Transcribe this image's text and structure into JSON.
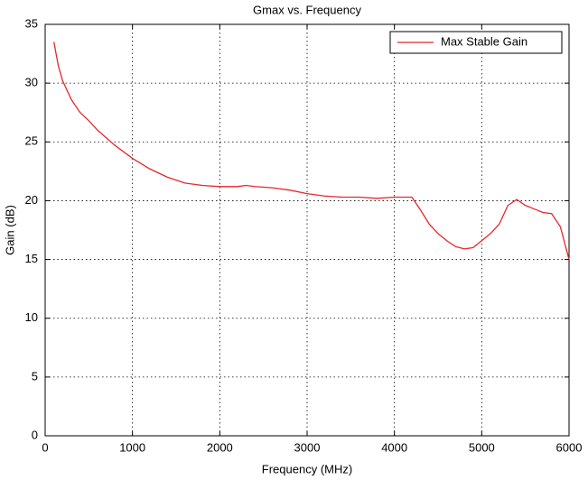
{
  "chart_data": {
    "type": "line",
    "title": "Gmax vs. Frequency",
    "x_label": "Frequency (MHz)",
    "y_label": "Gain (dB)",
    "x": [
      100,
      150,
      200,
      300,
      400,
      500,
      600,
      800,
      1000,
      1200,
      1400,
      1600,
      1800,
      2000,
      2200,
      2300,
      2400,
      2600,
      2800,
      3000,
      3200,
      3400,
      3600,
      3800,
      4000,
      4200,
      4300,
      4400,
      4500,
      4600,
      4700,
      4800,
      4900,
      5000,
      5100,
      5200,
      5300,
      5400,
      5500,
      5600,
      5700,
      5800,
      5900,
      6000
    ],
    "series": [
      {
        "name": "Max Stable Gain",
        "color": "#e8262b",
        "values": [
          33.5,
          31.5,
          30.2,
          28.6,
          27.5,
          26.8,
          26.0,
          24.7,
          23.6,
          22.7,
          22.0,
          21.5,
          21.3,
          21.2,
          21.2,
          21.3,
          21.2,
          21.1,
          20.9,
          20.6,
          20.4,
          20.3,
          20.3,
          20.2,
          20.3,
          20.3,
          19.2,
          18.0,
          17.2,
          16.6,
          16.1,
          15.9,
          16.0,
          16.6,
          17.2,
          18.0,
          19.6,
          20.1,
          19.6,
          19.3,
          19.0,
          18.9,
          17.8,
          15.0
        ]
      }
    ],
    "xlim": [
      0,
      6000
    ],
    "xticks": [
      0,
      1000,
      2000,
      3000,
      4000,
      5000,
      6000
    ],
    "ylim": [
      0,
      35
    ],
    "yticks": [
      0,
      5,
      10,
      15,
      20,
      25,
      30,
      35
    ],
    "grid": true,
    "legend": "upper right"
  }
}
